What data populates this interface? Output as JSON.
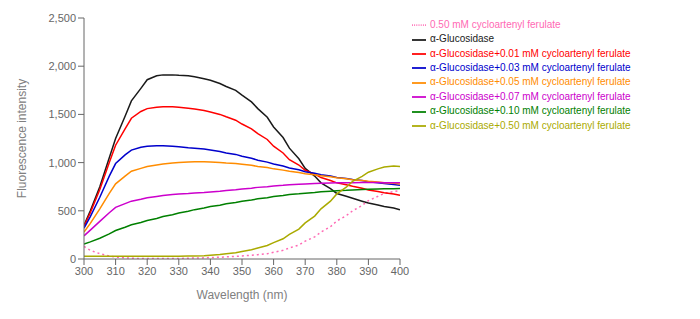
{
  "chart_data": {
    "type": "line",
    "xlabel": "Wavelength (nm)",
    "ylabel": "Fluorescence intensity",
    "x": [
      300,
      302,
      305,
      308,
      310,
      313,
      315,
      318,
      320,
      323,
      325,
      328,
      330,
      333,
      335,
      338,
      340,
      343,
      345,
      348,
      350,
      353,
      355,
      358,
      360,
      363,
      365,
      368,
      370,
      373,
      375,
      378,
      380,
      383,
      385,
      388,
      390,
      393,
      395,
      398,
      400
    ],
    "series": [
      {
        "name": "α-Glucosidase",
        "color": "#1a1a1a",
        "line_style": "solid",
        "values": [
          350,
          500,
          750,
          1050,
          1250,
          1480,
          1640,
          1770,
          1860,
          1900,
          1910,
          1910,
          1905,
          1900,
          1890,
          1870,
          1855,
          1820,
          1790,
          1750,
          1700,
          1630,
          1560,
          1470,
          1370,
          1260,
          1150,
          1040,
          940,
          860,
          790,
          730,
          680,
          650,
          630,
          600,
          580,
          560,
          545,
          530,
          510
        ]
      },
      {
        "name": "0.50 mM cycloartenyl ferulate",
        "color": "#ff69b4",
        "line_style": "dotted",
        "values": [
          130,
          90,
          55,
          30,
          20,
          12,
          8,
          5,
          5,
          5,
          5,
          5,
          5,
          8,
          10,
          12,
          15,
          18,
          22,
          27,
          32,
          38,
          45,
          55,
          70,
          90,
          115,
          145,
          185,
          230,
          280,
          335,
          395,
          450,
          500,
          555,
          605,
          650,
          680,
          700,
          710
        ]
      },
      {
        "name": "α-Glucosidase+0.01 mM cycloartenyl ferulate",
        "color": "#ff0000",
        "line_style": "solid",
        "values": [
          340,
          480,
          720,
          1000,
          1180,
          1350,
          1460,
          1530,
          1560,
          1575,
          1580,
          1580,
          1575,
          1565,
          1555,
          1540,
          1525,
          1500,
          1475,
          1440,
          1400,
          1350,
          1300,
          1240,
          1170,
          1100,
          1030,
          975,
          920,
          880,
          845,
          815,
          790,
          770,
          755,
          735,
          715,
          700,
          688,
          675,
          660
        ]
      },
      {
        "name": "α-Glucosidase+0.03 mM cycloartenyl ferulate",
        "color": "#0000cc",
        "line_style": "solid",
        "values": [
          320,
          440,
          640,
          860,
          990,
          1080,
          1130,
          1160,
          1170,
          1175,
          1175,
          1170,
          1165,
          1155,
          1150,
          1140,
          1130,
          1115,
          1100,
          1085,
          1065,
          1045,
          1025,
          1005,
          985,
          965,
          945,
          925,
          905,
          890,
          875,
          860,
          845,
          835,
          825,
          815,
          800,
          790,
          782,
          774,
          765
        ]
      },
      {
        "name": "α-Glucosidase+0.05 mM cycloartenyl ferulate",
        "color": "#ff8c00",
        "line_style": "solid",
        "values": [
          280,
          370,
          520,
          680,
          780,
          860,
          910,
          940,
          960,
          975,
          985,
          995,
          1000,
          1005,
          1008,
          1008,
          1005,
          1000,
          995,
          990,
          982,
          972,
          960,
          948,
          935,
          922,
          910,
          898,
          885,
          874,
          863,
          852,
          842,
          832,
          822,
          814,
          806,
          798,
          791,
          785,
          778
        ]
      },
      {
        "name": "α-Glucosidase+0.07 mM cycloartenyl ferulate",
        "color": "#cc00cc",
        "line_style": "solid",
        "values": [
          240,
          300,
          390,
          480,
          535,
          575,
          600,
          620,
          635,
          648,
          658,
          668,
          675,
          680,
          685,
          690,
          696,
          702,
          710,
          718,
          726,
          735,
          743,
          750,
          758,
          764,
          770,
          775,
          778,
          782,
          785,
          788,
          790,
          791,
          792,
          793,
          793,
          793,
          792,
          791,
          790
        ]
      },
      {
        "name": "α-Glucosidase+0.10 mM cycloartenyl ferulate",
        "color": "#008000",
        "line_style": "solid",
        "values": [
          155,
          178,
          215,
          260,
          295,
          330,
          355,
          378,
          400,
          420,
          440,
          460,
          478,
          496,
          512,
          528,
          544,
          558,
          572,
          585,
          598,
          612,
          624,
          636,
          648,
          658,
          668,
          676,
          683,
          690,
          697,
          703,
          708,
          712,
          717,
          720,
          723,
          726,
          728,
          730,
          731
        ]
      },
      {
        "name": "α-Glucosidase+0.50 mM cycloartenyl ferulate",
        "color": "#aaaa00",
        "line_style": "solid",
        "values": [
          28,
          28,
          28,
          28,
          28,
          28,
          28,
          28,
          28,
          28,
          28,
          28,
          28,
          30,
          32,
          35,
          40,
          46,
          55,
          65,
          78,
          95,
          115,
          140,
          170,
          210,
          255,
          310,
          375,
          445,
          520,
          600,
          675,
          745,
          805,
          858,
          900,
          935,
          955,
          965,
          960
        ]
      }
    ],
    "xlim": [
      300,
      400
    ],
    "ylim": [
      0,
      2500
    ],
    "xticks": [
      300,
      310,
      320,
      330,
      340,
      350,
      360,
      370,
      380,
      390,
      400
    ],
    "yticks": [
      0,
      500,
      {
        "value": 1000,
        "label": "1,000"
      },
      {
        "value": 1500,
        "label": "1,500"
      },
      {
        "value": 2000,
        "label": "2,000"
      },
      {
        "value": 2500,
        "label": "2,500"
      }
    ],
    "grid": false,
    "legend": "right"
  }
}
